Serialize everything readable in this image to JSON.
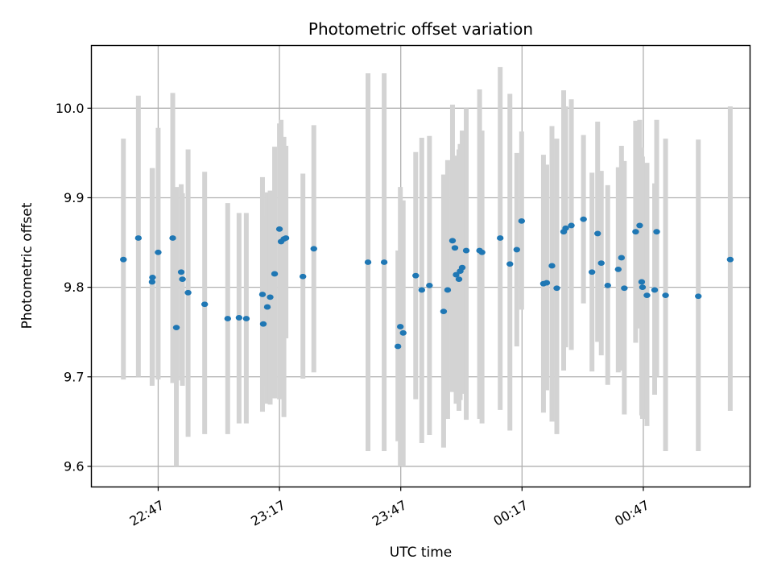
{
  "chart_data": {
    "type": "scatter",
    "title": "Photometric offset variation",
    "xlabel": "UTC time",
    "ylabel": "Photometric offset",
    "ylim": [
      9.577,
      10.07
    ],
    "xlim_minutes": [
      22.48,
      185.4
    ],
    "grid": true,
    "x_tick_labels": [
      "22:47",
      "23:17",
      "23:47",
      "00:17",
      "00:47"
    ],
    "x_tick_minutes": [
      39,
      69,
      99,
      129,
      159
    ],
    "y_ticks": [
      9.6,
      9.7,
      9.8,
      9.9,
      10.0
    ],
    "y_tick_labels": [
      "9.6",
      "9.7",
      "9.8",
      "9.9",
      "10.0"
    ],
    "colors": {
      "point": "#1f77b4",
      "errorbar": "#d3d3d3",
      "grid": "#b0b0b0"
    },
    "series": [
      {
        "x_minutes": [
          30.4,
          34.1,
          37.5,
          37.6,
          39.0,
          42.6,
          43.5,
          44.7,
          45.0,
          46.4,
          50.5,
          56.2,
          59.0,
          60.8,
          64.8,
          65.0,
          66.0,
          66.7,
          67.8,
          69.0,
          69.4,
          70.1,
          70.6,
          74.8,
          77.5,
          90.9,
          94.9,
          98.3,
          98.9,
          99.6,
          102.7,
          104.2,
          106.1,
          109.6,
          110.6,
          111.8,
          112.4,
          112.7,
          113.4,
          113.7,
          114.2,
          115.2,
          118.5,
          119.1,
          123.6,
          126.0,
          127.7,
          128.9,
          134.3,
          135.1,
          136.4,
          137.6,
          139.3,
          139.8,
          141.2,
          144.2,
          146.3,
          147.7,
          148.6,
          150.2,
          152.8,
          153.6,
          154.3,
          157.1,
          158.1,
          158.6,
          158.8,
          159.9,
          161.8,
          162.3,
          164.5,
          172.6,
          180.5
        ],
        "y": [
          9.831,
          9.855,
          9.806,
          9.811,
          9.839,
          9.855,
          9.755,
          9.817,
          9.809,
          9.794,
          9.781,
          9.765,
          9.766,
          9.765,
          9.792,
          9.759,
          9.778,
          9.789,
          9.815,
          9.865,
          9.851,
          9.854,
          9.855,
          9.812,
          9.843,
          9.828,
          9.828,
          9.734,
          9.756,
          9.749,
          9.813,
          9.797,
          9.802,
          9.773,
          9.797,
          9.852,
          9.844,
          9.814,
          9.809,
          9.818,
          9.822,
          9.841,
          9.841,
          9.839,
          9.855,
          9.826,
          9.842,
          9.874,
          9.804,
          9.805,
          9.824,
          9.799,
          9.862,
          9.866,
          9.869,
          9.876,
          9.817,
          9.86,
          9.827,
          9.802,
          9.82,
          9.833,
          9.799,
          9.862,
          9.869,
          9.806,
          9.8,
          9.791,
          9.797,
          9.862,
          9.791,
          9.79,
          9.831
        ],
        "y_low": [
          9.697,
          9.7,
          9.69,
          9.7,
          9.697,
          9.693,
          9.6,
          9.696,
          9.69,
          9.633,
          9.636,
          9.636,
          9.648,
          9.648,
          9.661,
          9.69,
          9.67,
          9.669,
          9.676,
          9.675,
          9.676,
          9.655,
          9.743,
          9.698,
          9.705,
          9.617,
          9.617,
          9.628,
          9.6,
          9.6,
          9.675,
          9.626,
          9.635,
          9.621,
          9.653,
          9.683,
          9.683,
          9.67,
          9.662,
          9.674,
          9.681,
          9.652,
          9.653,
          9.648,
          9.663,
          9.64,
          9.734,
          9.775,
          9.66,
          9.685,
          9.65,
          9.636,
          9.707,
          9.733,
          9.73,
          9.782,
          9.706,
          9.739,
          9.724,
          9.691,
          9.705,
          9.707,
          9.658,
          9.738,
          9.754,
          9.657,
          9.653,
          9.645,
          9.68,
          9.7,
          9.617,
          9.617,
          9.662
        ],
        "y_high": [
          9.966,
          10.014,
          9.933,
          9.933,
          9.978,
          10.017,
          9.912,
          9.915,
          9.905,
          9.954,
          9.929,
          9.894,
          9.883,
          9.883,
          9.923,
          9.88,
          9.906,
          9.908,
          9.957,
          9.983,
          9.987,
          9.968,
          9.958,
          9.927,
          9.981,
          10.039,
          10.039,
          9.841,
          9.912,
          9.897,
          9.951,
          9.967,
          9.969,
          9.926,
          9.942,
          10.004,
          9.945,
          9.947,
          9.954,
          9.96,
          9.975,
          10.0,
          10.021,
          9.975,
          10.046,
          10.016,
          9.95,
          9.974,
          9.948,
          9.937,
          9.98,
          9.966,
          10.02,
          10.002,
          10.01,
          9.97,
          9.928,
          9.985,
          9.93,
          9.914,
          9.934,
          9.958,
          9.941,
          9.986,
          9.987,
          9.956,
          9.946,
          9.939,
          9.916,
          9.987,
          9.966,
          9.965,
          10.002
        ]
      }
    ]
  }
}
